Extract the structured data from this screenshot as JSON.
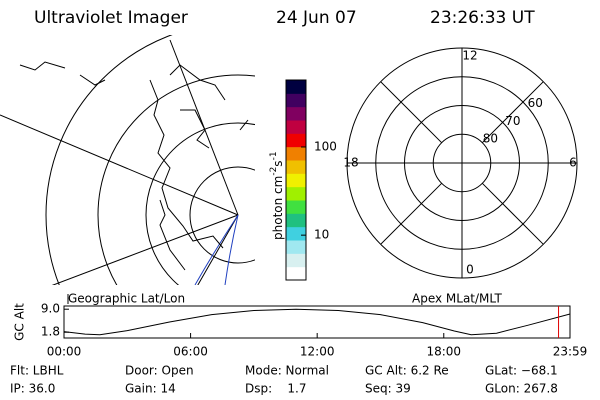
{
  "header": {
    "title": "Ultraviolet Imager",
    "date": "24 Jun 07",
    "time": "23:26:33 UT"
  },
  "map_panel": {
    "label": "Geographic Lat/Lon"
  },
  "colorbar": {
    "label_parts": [
      "photon cm",
      "-2",
      "s",
      "-1"
    ],
    "lim": [
      3.1,
      575
    ],
    "log": true,
    "ticks": [
      10,
      100
    ],
    "colors": [
      "#ffffff",
      "#d8f0f0",
      "#a0e8f0",
      "#40d0e0",
      "#20c080",
      "#40e040",
      "#a0f000",
      "#f0f000",
      "#f0c000",
      "#f08000",
      "#f00000",
      "#c00040",
      "#800060",
      "#400060",
      "#000040"
    ]
  },
  "polar_panel": {
    "label": "Apex MLat/MLT",
    "mlat_lim": [
      50,
      90
    ],
    "mlat_rings": [
      80,
      70,
      60
    ],
    "mlt_labels": [
      12,
      18,
      6,
      0
    ]
  },
  "chart_data": {
    "type": "line",
    "ylabel": "GC Alt",
    "x": [
      0,
      1,
      1.7,
      3,
      5,
      7,
      9,
      11,
      13,
      15,
      17,
      18.5,
      19.3,
      20.5,
      22,
      23.983
    ],
    "series": [
      {
        "name": "GC Alt",
        "color": "#000000",
        "values": [
          2.0,
          1.2,
          1.0,
          2.3,
          5.0,
          7.3,
          8.6,
          9.0,
          8.6,
          7.3,
          4.8,
          2.2,
          1.0,
          1.5,
          4.0,
          7.5
        ]
      }
    ],
    "marker": {
      "x": 23.44,
      "color": "#e00000"
    },
    "xlim": [
      0,
      23.983
    ],
    "ylim": [
      0,
      10
    ],
    "xticks": [
      {
        "value": 0,
        "label": "00:00"
      },
      {
        "value": 6,
        "label": "06:00"
      },
      {
        "value": 12,
        "label": "12:00"
      },
      {
        "value": 18,
        "label": "18:00"
      },
      {
        "value": 23.983,
        "label": "23:59"
      }
    ],
    "yticks": [
      {
        "value": 9,
        "label": "9.0"
      },
      {
        "value": 1.8,
        "label": "1.8"
      }
    ]
  },
  "footer": {
    "rows": [
      [
        "Flt: LBHL",
        "Door: Open",
        "Mode: Normal",
        "GC Alt: 6.2 Re",
        "GLat: −68.1"
      ],
      [
        "IP: 36.0",
        "Gain: 14",
        "Dsp:    1.7",
        "Seq: 39",
        "GLon: 267.8"
      ]
    ]
  }
}
